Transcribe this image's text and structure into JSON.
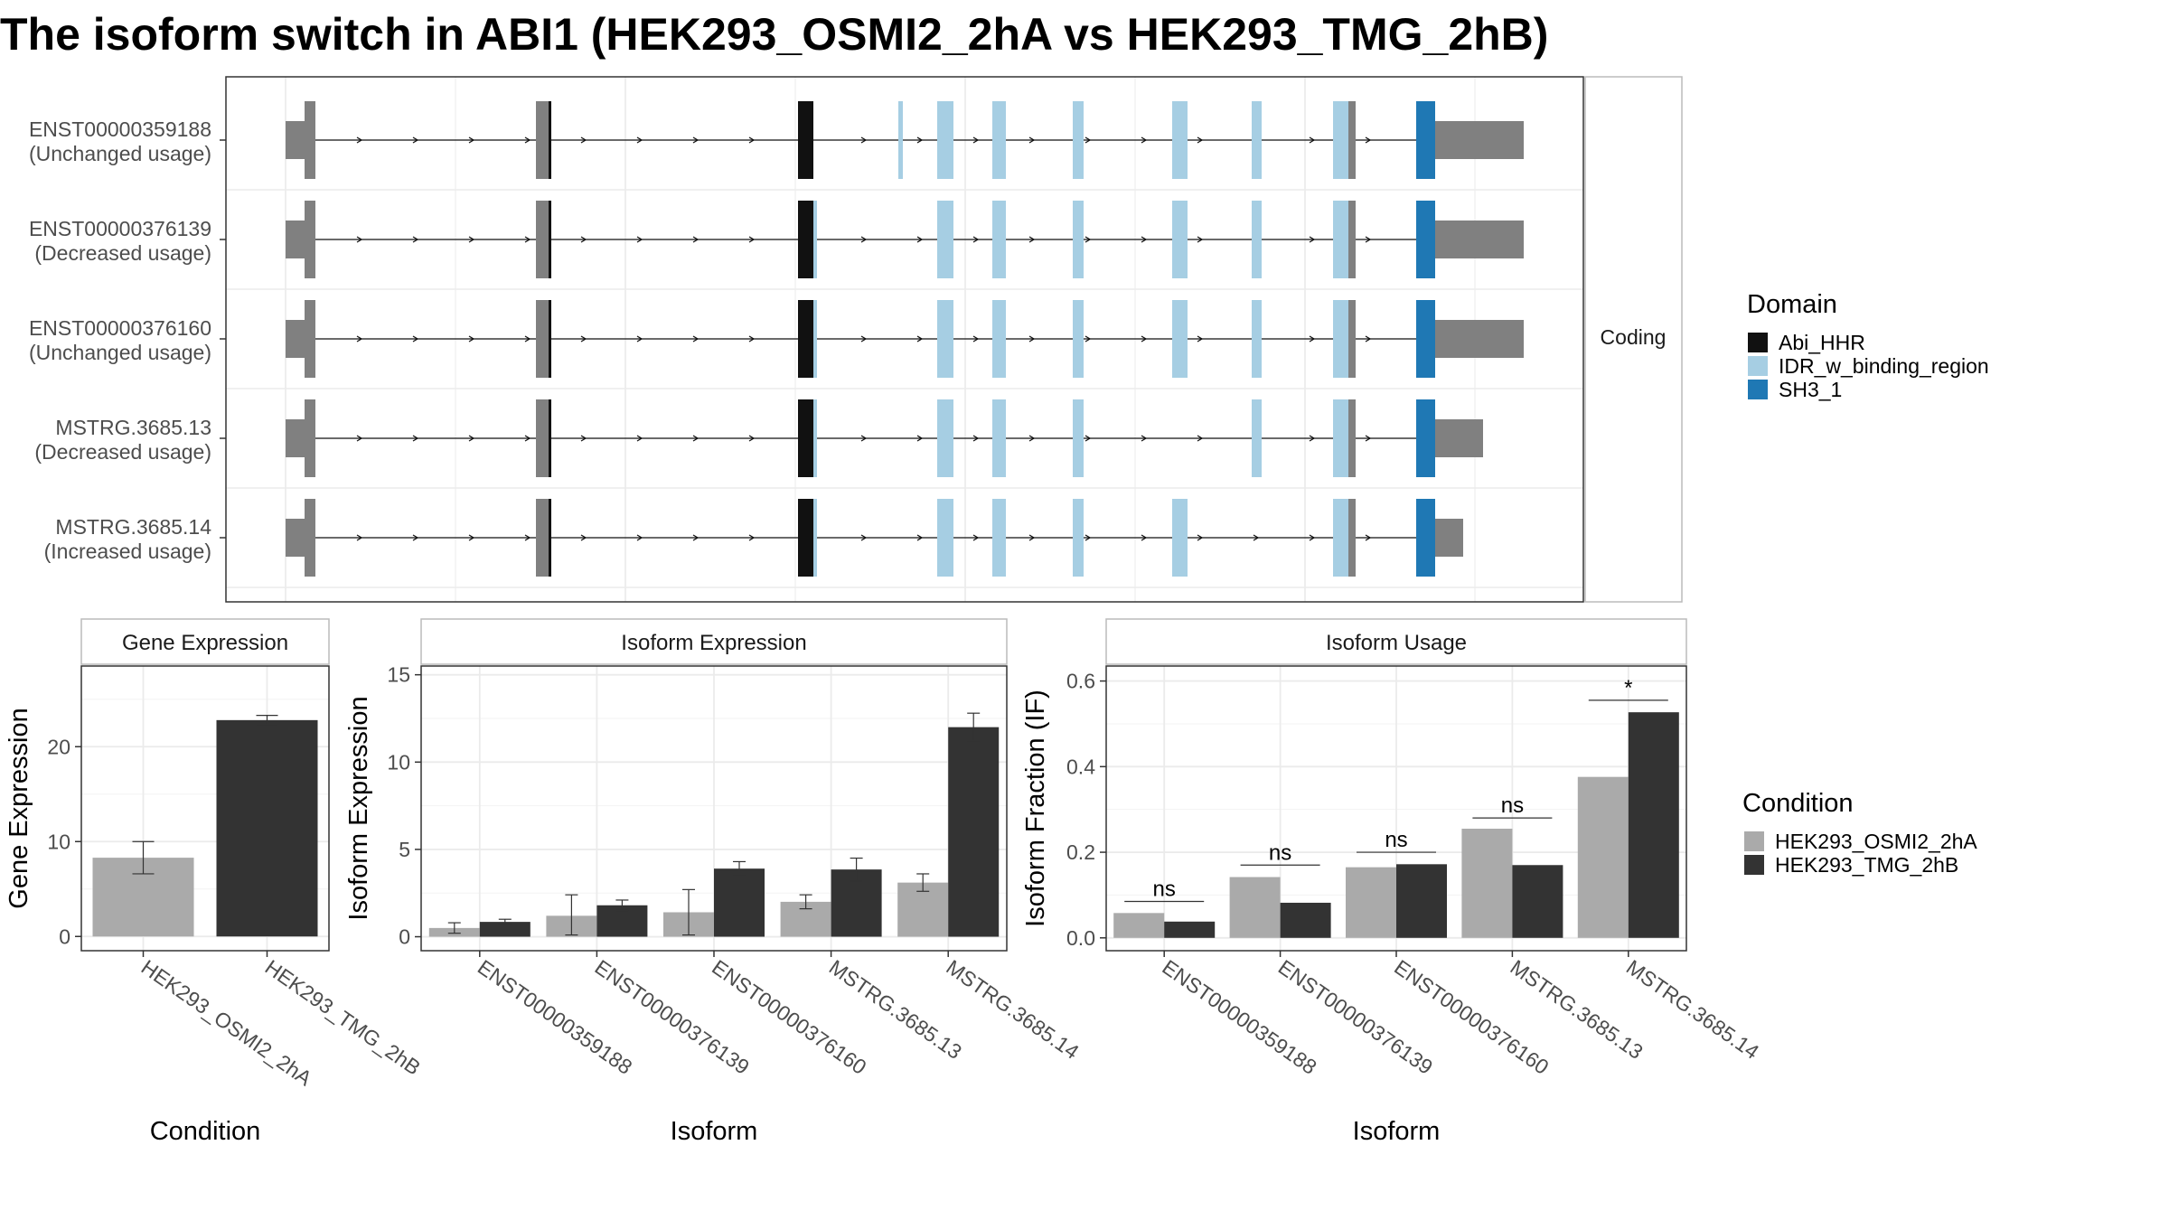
{
  "title": "The isoform switch in ABI1 (HEK293_OSMI2_2hA vs HEK293_TMG_2hB)",
  "colors": {
    "exon_gray": "#808080",
    "abi_hhr": "#111111",
    "idr": "#a6cee3",
    "sh3": "#1f78b4",
    "cond_a": "#aaaaaa",
    "cond_b": "#333333",
    "grid": "#ebebeb",
    "strip_fill": "#ffffff"
  },
  "structure": {
    "strip_label": "Coding",
    "isoforms": [
      {
        "id": "ENST00000359188",
        "usage": "(Unchanged usage)"
      },
      {
        "id": "ENST00000376139",
        "usage": "(Decreased usage)"
      },
      {
        "id": "ENST00000376160",
        "usage": "(Unchanged usage)"
      },
      {
        "id": "MSTRG.3685.13",
        "usage": "(Decreased usage)"
      },
      {
        "id": "MSTRG.3685.14",
        "usage": "(Increased usage)"
      }
    ]
  },
  "domain_legend": {
    "title": "Domain",
    "items": [
      {
        "label": "Abi_HHR",
        "color": "#111111"
      },
      {
        "label": "IDR_w_binding_region",
        "color": "#a6cee3"
      },
      {
        "label": "SH3_1",
        "color": "#1f78b4"
      }
    ]
  },
  "condition_legend": {
    "title": "Condition",
    "items": [
      {
        "label": "HEK293_OSMI2_2hA",
        "color": "#aaaaaa"
      },
      {
        "label": "HEK293_TMG_2hB",
        "color": "#333333"
      }
    ]
  },
  "chart_data": [
    {
      "type": "bar",
      "title": "Gene Expression",
      "xlabel": "Condition",
      "ylabel": "Gene Expression",
      "categories": [
        "HEK293_OSMI2_2hA",
        "HEK293_TMG_2hB"
      ],
      "values": [
        8.3,
        22.8
      ],
      "error_low": [
        6.6,
        22.3
      ],
      "error_high": [
        10.0,
        23.3
      ],
      "ylim": [
        -1.5,
        28.5
      ],
      "yticks": [
        0,
        10,
        20
      ],
      "grid": true
    },
    {
      "type": "bar",
      "title": "Isoform Expression",
      "xlabel": "Isoform",
      "ylabel": "Isoform Expression",
      "categories": [
        "ENST00000359188",
        "ENST00000376139",
        "ENST00000376160",
        "MSTRG.3685.13",
        "MSTRG.3685.14"
      ],
      "series": [
        {
          "name": "HEK293_OSMI2_2hA",
          "values": [
            0.5,
            1.2,
            1.4,
            2.0,
            3.1
          ],
          "error_low": [
            0.2,
            0.1,
            0.1,
            1.6,
            2.6
          ],
          "error_high": [
            0.8,
            2.4,
            2.7,
            2.4,
            3.6
          ]
        },
        {
          "name": "HEK293_TMG_2hB",
          "values": [
            0.85,
            1.8,
            3.9,
            3.85,
            12.0
          ],
          "error_low": [
            0.7,
            1.5,
            3.5,
            3.2,
            11.2
          ],
          "error_high": [
            1.0,
            2.1,
            4.3,
            4.5,
            12.8
          ]
        }
      ],
      "ylim": [
        -0.8,
        15.5
      ],
      "yticks": [
        0,
        5,
        10,
        15
      ],
      "grid": true
    },
    {
      "type": "bar",
      "title": "Isoform Usage",
      "xlabel": "Isoform",
      "ylabel": "Isoform Fraction (IF)",
      "categories": [
        "ENST00000359188",
        "ENST00000376139",
        "ENST00000376160",
        "MSTRG.3685.13",
        "MSTRG.3685.14"
      ],
      "series": [
        {
          "name": "HEK293_OSMI2_2hA",
          "values": [
            0.058,
            0.142,
            0.165,
            0.255,
            0.376
          ]
        },
        {
          "name": "HEK293_TMG_2hB",
          "values": [
            0.038,
            0.082,
            0.172,
            0.17,
            0.527
          ]
        }
      ],
      "significance": [
        "ns",
        "ns",
        "ns",
        "ns",
        "*"
      ],
      "sig_bar_y": [
        0.085,
        0.17,
        0.2,
        0.28,
        0.555
      ],
      "ylim": [
        -0.03,
        0.635
      ],
      "yticks": [
        0.0,
        0.2,
        0.4,
        0.6
      ],
      "ytick_labels": [
        "0.0",
        "0.2",
        "0.4",
        "0.6"
      ],
      "grid": true
    }
  ]
}
